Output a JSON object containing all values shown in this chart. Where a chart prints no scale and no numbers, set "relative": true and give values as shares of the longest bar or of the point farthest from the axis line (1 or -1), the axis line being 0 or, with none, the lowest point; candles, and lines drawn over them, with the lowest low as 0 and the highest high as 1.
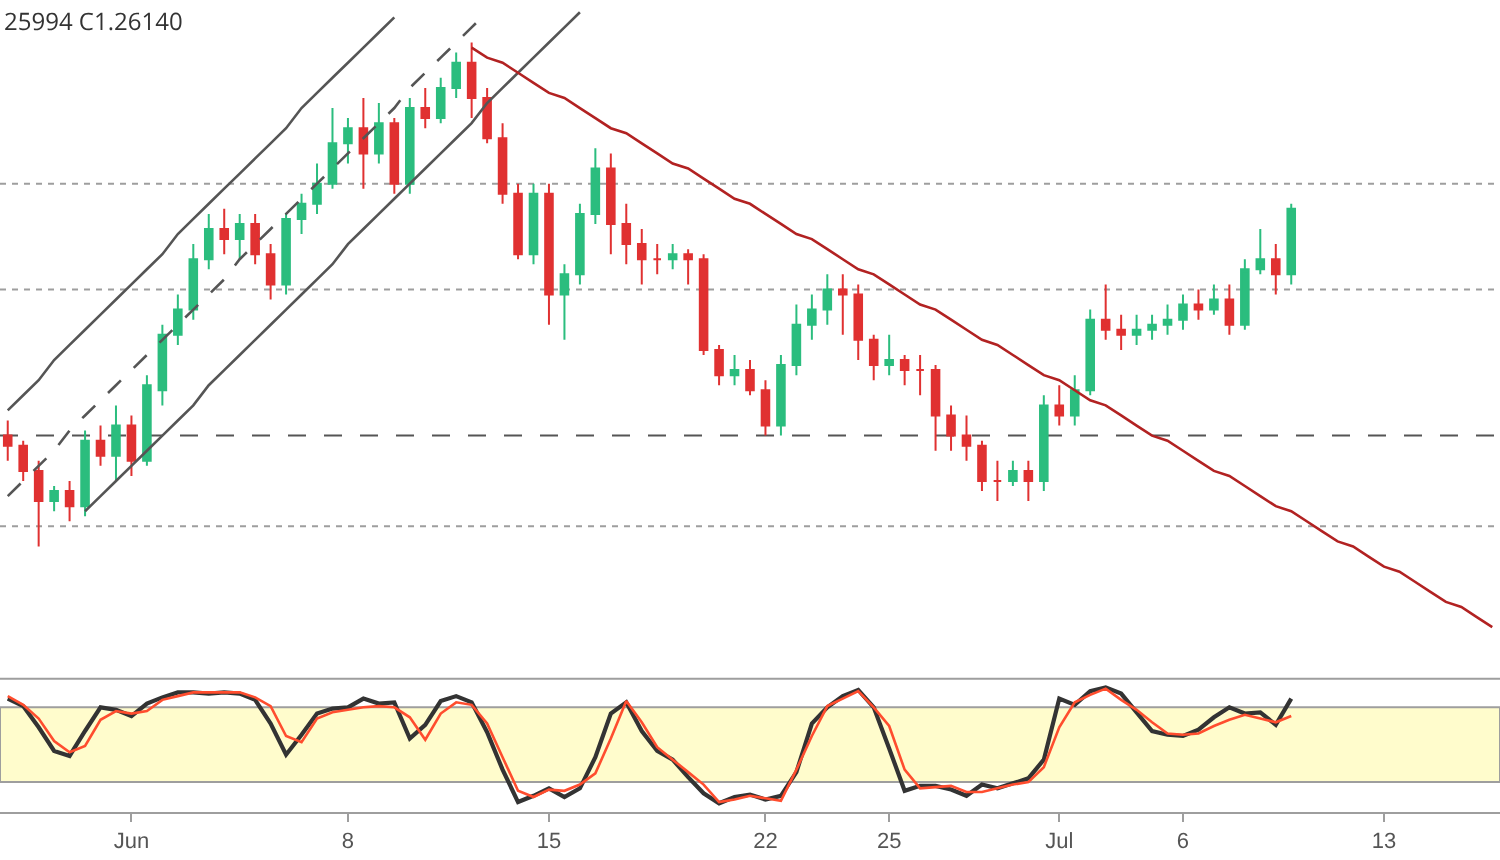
{
  "chart_data": [
    {
      "type": "candlestick",
      "relative": true,
      "tick_labels": false,
      "categories": [
        null,
        null,
        null,
        null,
        null,
        null,
        null,
        null,
        null,
        null,
        null,
        null,
        null,
        null,
        null,
        null,
        null,
        null,
        null,
        null,
        null,
        null,
        null,
        null,
        null,
        null,
        null,
        null,
        null,
        null,
        null,
        null,
        null,
        null,
        null,
        null,
        null,
        null,
        null,
        null,
        null,
        null,
        null,
        null,
        null,
        null,
        null,
        null,
        null,
        null,
        null,
        null,
        null,
        null,
        null,
        null,
        null,
        null,
        null,
        null,
        null,
        null,
        null,
        null,
        null,
        null,
        null,
        null,
        null,
        null,
        null,
        null,
        null,
        null,
        null,
        null,
        null,
        null,
        null,
        null,
        null,
        null,
        null,
        null,
        null,
        null,
        null,
        null,
        null,
        null,
        null,
        null,
        null,
        null,
        null,
        null,
        null
      ],
      "ohlc": [
        [
          0.22,
          0.25,
          0.17,
          0.2
        ],
        [
          0.2,
          0.21,
          0.13,
          0.15
        ],
        [
          0.15,
          0.17,
          0,
          0.09
        ],
        [
          0.09,
          0.12,
          0.07,
          0.11
        ],
        [
          0.11,
          0.13,
          0.05,
          0.08
        ],
        [
          0.08,
          0.23,
          0.06,
          0.21
        ],
        [
          0.21,
          0.24,
          0.16,
          0.18
        ],
        [
          0.18,
          0.28,
          0.13,
          0.24
        ],
        [
          0.24,
          0.26,
          0.14,
          0.17
        ],
        [
          0.17,
          0.34,
          0.16,
          0.32
        ],
        [
          0.31,
          0.44,
          0.28,
          0.42
        ],
        [
          0.42,
          0.5,
          0.4,
          0.47
        ],
        [
          0.47,
          0.6,
          0.45,
          0.57
        ],
        [
          0.57,
          0.66,
          0.55,
          0.63
        ],
        [
          0.63,
          0.67,
          0.58,
          0.61
        ],
        [
          0.61,
          0.66,
          0.57,
          0.64
        ],
        [
          0.64,
          0.66,
          0.56,
          0.58
        ],
        [
          0.58,
          0.6,
          0.49,
          0.52
        ],
        [
          0.52,
          0.66,
          0.5,
          0.65
        ],
        [
          0.65,
          0.7,
          0.62,
          0.68
        ],
        [
          0.68,
          0.76,
          0.66,
          0.72
        ],
        [
          0.72,
          0.87,
          0.71,
          0.8
        ],
        [
          0.8,
          0.85,
          0.76,
          0.83
        ],
        [
          0.83,
          0.89,
          0.71,
          0.78
        ],
        [
          0.78,
          0.88,
          0.76,
          0.84
        ],
        [
          0.84,
          0.85,
          0.7,
          0.72
        ],
        [
          0.72,
          0.89,
          0.7,
          0.87
        ],
        [
          0.87,
          0.91,
          0.83,
          0.85
        ],
        [
          0.85,
          0.93,
          0.84,
          0.91
        ],
        [
          0.91,
          0.98,
          0.89,
          0.96
        ],
        [
          0.96,
          1.0,
          0.85,
          0.89
        ],
        [
          0.89,
          0.91,
          0.8,
          0.81
        ],
        [
          0.81,
          0.84,
          0.68,
          0.7
        ],
        [
          0.7,
          0.72,
          0.57,
          0.58
        ],
        [
          0.58,
          0.72,
          0.56,
          0.7
        ],
        [
          0.7,
          0.72,
          0.44,
          0.5
        ],
        [
          0.5,
          0.56,
          0.41,
          0.54
        ],
        [
          0.54,
          0.68,
          0.52,
          0.66
        ],
        [
          0.66,
          0.79,
          0.64,
          0.75
        ],
        [
          0.75,
          0.78,
          0.58,
          0.64
        ],
        [
          0.64,
          0.68,
          0.56,
          0.6
        ],
        [
          0.6,
          0.63,
          0.52,
          0.57
        ],
        [
          0.57,
          0.6,
          0.54,
          0.57
        ],
        [
          0.57,
          0.6,
          0.55,
          0.58
        ],
        [
          0.58,
          0.59,
          0.52,
          0.57
        ],
        [
          0.57,
          0.58,
          0.38,
          0.39
        ],
        [
          0.39,
          0.4,
          0.32,
          0.34
        ],
        [
          0.34,
          0.38,
          0.32,
          0.35
        ],
        [
          0.35,
          0.37,
          0.3,
          0.31
        ],
        [
          0.31,
          0.33,
          0.22,
          0.24
        ],
        [
          0.24,
          0.38,
          0.22,
          0.36
        ],
        [
          0.36,
          0.48,
          0.34,
          0.44
        ],
        [
          0.44,
          0.5,
          0.41,
          0.47
        ],
        [
          0.47,
          0.54,
          0.44,
          0.51
        ],
        [
          0.51,
          0.54,
          0.42,
          0.5
        ],
        [
          0.5,
          0.52,
          0.37,
          0.41
        ],
        [
          0.41,
          0.42,
          0.33,
          0.36
        ],
        [
          0.36,
          0.42,
          0.34,
          0.37
        ],
        [
          0.37,
          0.38,
          0.32,
          0.35
        ],
        [
          0.35,
          0.38,
          0.3,
          0.35
        ],
        [
          0.35,
          0.36,
          0.19,
          0.26
        ],
        [
          0.26,
          0.28,
          0.19,
          0.22
        ],
        [
          0.22,
          0.26,
          0.17,
          0.2
        ],
        [
          0.2,
          0.21,
          0.11,
          0.13
        ],
        [
          0.13,
          0.17,
          0.09,
          0.13
        ],
        [
          0.13,
          0.17,
          0.12,
          0.15
        ],
        [
          0.15,
          0.17,
          0.09,
          0.13
        ],
        [
          0.13,
          0.3,
          0.11,
          0.28
        ],
        [
          0.28,
          0.32,
          0.24,
          0.26
        ],
        [
          0.26,
          0.34,
          0.24,
          0.31
        ],
        [
          0.31,
          0.47,
          0.3,
          0.45
        ],
        [
          0.45,
          0.52,
          0.41,
          0.43
        ],
        [
          0.43,
          0.46,
          0.39,
          0.42
        ],
        [
          0.42,
          0.46,
          0.4,
          0.43
        ],
        [
          0.43,
          0.46,
          0.41,
          0.44
        ],
        [
          0.44,
          0.48,
          0.42,
          0.45
        ],
        [
          0.45,
          0.5,
          0.43,
          0.48
        ],
        [
          0.48,
          0.51,
          0.45,
          0.47
        ],
        [
          0.47,
          0.52,
          0.46,
          0.49
        ],
        [
          0.49,
          0.52,
          0.42,
          0.44
        ],
        [
          0.44,
          0.57,
          0.43,
          0.55
        ],
        [
          0.55,
          0.63,
          0.54,
          0.57
        ],
        [
          0.57,
          0.6,
          0.5,
          0.54
        ],
        [
          0.54,
          0.68,
          0.52,
          0.67
        ],
        null,
        null,
        null,
        null,
        null,
        null,
        null,
        null,
        null,
        null,
        null,
        null,
        null
      ],
      "colors": [
        "#e03131",
        "#e03131",
        "#e03131",
        "#2bbd7e",
        "#e03131",
        "#2bbd7e",
        "#e03131",
        "#2bbd7e",
        "#e03131",
        "#2bbd7e",
        "#2bbd7e",
        "#2bbd7e",
        "#2bbd7e",
        "#2bbd7e",
        "#e03131",
        "#2bbd7e",
        "#e03131",
        "#e03131",
        "#2bbd7e",
        "#2bbd7e",
        "#2bbd7e",
        "#2bbd7e",
        "#2bbd7e",
        "#e03131",
        "#2bbd7e",
        "#e03131",
        "#2bbd7e",
        "#e03131",
        "#2bbd7e",
        "#2bbd7e",
        "#e03131",
        "#e03131",
        "#e03131",
        "#e03131",
        "#2bbd7e",
        "#e03131",
        "#2bbd7e",
        "#2bbd7e",
        "#2bbd7e",
        "#e03131",
        "#e03131",
        "#e03131",
        "#e03131",
        "#2bbd7e",
        "#e03131",
        "#e03131",
        "#e03131",
        "#2bbd7e",
        "#e03131",
        "#e03131",
        "#2bbd7e",
        "#2bbd7e",
        "#2bbd7e",
        "#2bbd7e",
        "#e03131",
        "#e03131",
        "#e03131",
        "#2bbd7e",
        "#e03131",
        "#e03131",
        "#e03131",
        "#e03131",
        "#e03131",
        "#e03131",
        "#e03131",
        "#2bbd7e",
        "#e03131",
        "#2bbd7e",
        "#e03131",
        "#2bbd7e",
        "#2bbd7e",
        "#e03131",
        "#e03131",
        "#2bbd7e",
        "#2bbd7e",
        "#2bbd7e",
        "#2bbd7e",
        "#e03131",
        "#2bbd7e",
        "#e03131",
        "#2bbd7e",
        "#2bbd7e",
        "#e03131",
        "#2bbd7e",
        null,
        null,
        null,
        null,
        null,
        null,
        null,
        null,
        null,
        null,
        null,
        null,
        null
      ],
      "annotations": [
        "25994 C1.26140"
      ],
      "ref_lines": [
        {
          "axis": "y",
          "value": 0.72,
          "line_style": "dotted",
          "color": "#9e9e9e"
        },
        {
          "axis": "y",
          "value": 0.51,
          "line_style": "dotted",
          "color": "#9e9e9e"
        },
        {
          "axis": "y",
          "value": 0.22,
          "line_style": "dashed",
          "color": "#555555"
        },
        {
          "axis": "y",
          "value": 0.04,
          "line_style": "dotted",
          "color": "#9e9e9e"
        }
      ],
      "series": [
        {
          "type": "line",
          "color": "#555555",
          "values": [
            0.27,
            0.3,
            0.33,
            0.37,
            0.4,
            0.43,
            0.46,
            0.49,
            0.52,
            0.55,
            0.58,
            0.62,
            0.65,
            0.68,
            0.71,
            0.74,
            0.77,
            0.8,
            0.83,
            0.87,
            0.9,
            0.93,
            0.96,
            0.99,
            1.02,
            1.05,
            null,
            null,
            null,
            null,
            null,
            null,
            null,
            null,
            null,
            null,
            null,
            null,
            null,
            null,
            null,
            null,
            null,
            null,
            null,
            null,
            null,
            null,
            null,
            null,
            null,
            null,
            null,
            null,
            null,
            null,
            null,
            null,
            null,
            null,
            null,
            null,
            null,
            null,
            null,
            null,
            null,
            null,
            null,
            null,
            null,
            null,
            null,
            null,
            null,
            null,
            null,
            null,
            null,
            null,
            null,
            null,
            null,
            null,
            null,
            null,
            null,
            null,
            null,
            null,
            null,
            null,
            null,
            null,
            null,
            null,
            null
          ]
        },
        {
          "type": "line",
          "color": "#555555",
          "line_style": "dashed",
          "values": [
            0.1,
            0.13,
            0.16,
            0.19,
            0.23,
            0.26,
            0.29,
            0.32,
            0.35,
            0.38,
            0.41,
            0.44,
            0.47,
            0.5,
            0.53,
            0.57,
            0.6,
            0.63,
            0.66,
            0.69,
            0.72,
            0.75,
            0.78,
            0.81,
            0.84,
            0.87,
            0.91,
            0.94,
            0.97,
            1.0,
            1.03,
            1.06,
            null,
            null,
            null,
            null,
            null,
            null,
            null,
            null,
            null,
            null,
            null,
            null,
            null,
            null,
            null,
            null,
            null,
            null,
            null,
            null,
            null,
            null,
            null,
            null,
            null,
            null,
            null,
            null,
            null,
            null,
            null,
            null,
            null,
            null,
            null,
            null,
            null,
            null,
            null,
            null,
            null,
            null,
            null,
            null,
            null,
            null,
            null,
            null,
            null,
            null,
            null,
            null,
            null,
            null,
            null,
            null,
            null,
            null,
            null,
            null,
            null,
            null,
            null,
            null,
            null
          ]
        },
        {
          "type": "line",
          "color": "#555555",
          "values": [
            null,
            null,
            null,
            null,
            null,
            0.07,
            0.1,
            0.13,
            0.16,
            0.19,
            0.22,
            0.25,
            0.28,
            0.32,
            0.35,
            0.38,
            0.41,
            0.44,
            0.47,
            0.5,
            0.53,
            0.56,
            0.6,
            0.63,
            0.66,
            0.69,
            0.72,
            0.75,
            0.78,
            0.81,
            0.84,
            0.88,
            0.91,
            0.94,
            0.97,
            1.0,
            1.03,
            1.06,
            null,
            null,
            null,
            null,
            null,
            null,
            null,
            null,
            null,
            null,
            null,
            null,
            null,
            null,
            null,
            null,
            null,
            null,
            null,
            null,
            null,
            null,
            null,
            null,
            null,
            null,
            null,
            null,
            null,
            null,
            null,
            null,
            null,
            null,
            null,
            null,
            null,
            null,
            null,
            null,
            null,
            null,
            null,
            null,
            null,
            null,
            null,
            null,
            null,
            null,
            null,
            null,
            null,
            null,
            null,
            null,
            null,
            null,
            null
          ]
        },
        {
          "type": "line",
          "color": "#b22222",
          "values": [
            null,
            null,
            null,
            null,
            null,
            null,
            null,
            null,
            null,
            null,
            null,
            null,
            null,
            null,
            null,
            null,
            null,
            null,
            null,
            null,
            null,
            null,
            null,
            null,
            null,
            null,
            null,
            null,
            null,
            null,
            0.99,
            0.97,
            0.96,
            0.94,
            0.92,
            0.9,
            0.89,
            0.87,
            0.85,
            0.83,
            0.82,
            0.8,
            0.78,
            0.76,
            0.75,
            0.73,
            0.71,
            0.69,
            0.68,
            0.66,
            0.64,
            0.62,
            0.61,
            0.59,
            0.57,
            0.55,
            0.54,
            0.52,
            0.5,
            0.48,
            0.47,
            0.45,
            0.43,
            0.41,
            0.4,
            0.38,
            0.36,
            0.34,
            0.33,
            0.31,
            0.29,
            0.28,
            0.26,
            0.24,
            0.22,
            0.21,
            0.19,
            0.17,
            0.15,
            0.14,
            0.12,
            0.1,
            0.08,
            0.07,
            0.05,
            0.03,
            0.01,
            0.0,
            -0.02,
            -0.04,
            -0.05,
            -0.07,
            -0.09,
            -0.11,
            -0.12,
            -0.14,
            -0.16
          ]
        }
      ]
    },
    {
      "type": "line",
      "relative": true,
      "tick_labels": "x",
      "categories": [
        null,
        null,
        null,
        null,
        null,
        null,
        null,
        null,
        "Jun",
        null,
        null,
        null,
        null,
        null,
        null,
        null,
        null,
        null,
        null,
        null,
        null,
        null,
        "8",
        null,
        null,
        null,
        null,
        null,
        null,
        null,
        null,
        null,
        null,
        null,
        null,
        "15",
        null,
        null,
        null,
        null,
        null,
        null,
        null,
        null,
        null,
        null,
        null,
        null,
        null,
        "22",
        null,
        null,
        null,
        null,
        null,
        null,
        null,
        "25",
        null,
        null,
        null,
        null,
        null,
        null,
        null,
        null,
        null,
        null,
        "Jul",
        null,
        null,
        null,
        null,
        null,
        null,
        null,
        "6",
        null,
        null,
        null,
        null,
        null,
        null,
        null,
        null,
        null,
        null,
        null,
        null,
        "13",
        null,
        null,
        null,
        null,
        null,
        null,
        null
      ],
      "bands": [
        {
          "axis": "y",
          "from": 0.24,
          "to": 0.84,
          "color": "#fffccc"
        }
      ],
      "ref_lines": [
        {
          "axis": "y",
          "value": 1.07,
          "color": "#9e9e9e"
        }
      ],
      "series": [
        {
          "color": "#333333",
          "values": [
            0.91,
            0.85,
            0.68,
            0.49,
            0.45,
            0.65,
            0.84,
            0.82,
            0.77,
            0.87,
            0.92,
            0.96,
            0.96,
            0.95,
            0.96,
            0.95,
            0.9,
            0.71,
            0.46,
            0.62,
            0.79,
            0.83,
            0.84,
            0.91,
            0.87,
            0.88,
            0.59,
            0.7,
            0.89,
            0.93,
            0.88,
            0.64,
            0.34,
            0.08,
            0.13,
            0.19,
            0.12,
            0.19,
            0.44,
            0.79,
            0.88,
            0.65,
            0.49,
            0.42,
            0.28,
            0.15,
            0.07,
            0.12,
            0.14,
            0.1,
            0.13,
            0.32,
            0.71,
            0.84,
            0.93,
            0.98,
            0.84,
            0.51,
            0.17,
            0.21,
            0.21,
            0.18,
            0.13,
            0.22,
            0.19,
            0.23,
            0.27,
            0.42,
            0.91,
            0.86,
            0.97,
            1.0,
            0.95,
            0.8,
            0.65,
            0.62,
            0.61,
            0.66,
            0.76,
            0.84,
            0.79,
            0.8,
            0.7,
            0.91,
            null,
            null,
            null,
            null,
            null,
            null,
            null,
            null,
            null,
            null,
            null,
            null,
            null
          ]
        },
        {
          "color": "#ff4d2e",
          "values": [
            0.93,
            0.86,
            0.75,
            0.57,
            0.48,
            0.53,
            0.74,
            0.81,
            0.79,
            0.81,
            0.9,
            0.93,
            0.96,
            0.96,
            0.96,
            0.96,
            0.92,
            0.85,
            0.61,
            0.56,
            0.75,
            0.8,
            0.82,
            0.84,
            0.85,
            0.84,
            0.76,
            0.58,
            0.79,
            0.88,
            0.86,
            0.71,
            0.44,
            0.17,
            0.12,
            0.18,
            0.17,
            0.22,
            0.31,
            0.59,
            0.89,
            0.72,
            0.52,
            0.42,
            0.32,
            0.22,
            0.08,
            0.1,
            0.13,
            0.11,
            0.09,
            0.34,
            0.61,
            0.85,
            0.91,
            0.97,
            0.84,
            0.69,
            0.34,
            0.19,
            0.2,
            0.21,
            0.16,
            0.16,
            0.19,
            0.22,
            0.24,
            0.36,
            0.68,
            0.88,
            0.94,
            0.99,
            0.9,
            0.82,
            0.72,
            0.63,
            0.62,
            0.63,
            0.69,
            0.74,
            0.78,
            0.75,
            0.72,
            0.77,
            null,
            null,
            null,
            null,
            null,
            null,
            null,
            null,
            null,
            null,
            null,
            null,
            null
          ]
        }
      ]
    }
  ]
}
